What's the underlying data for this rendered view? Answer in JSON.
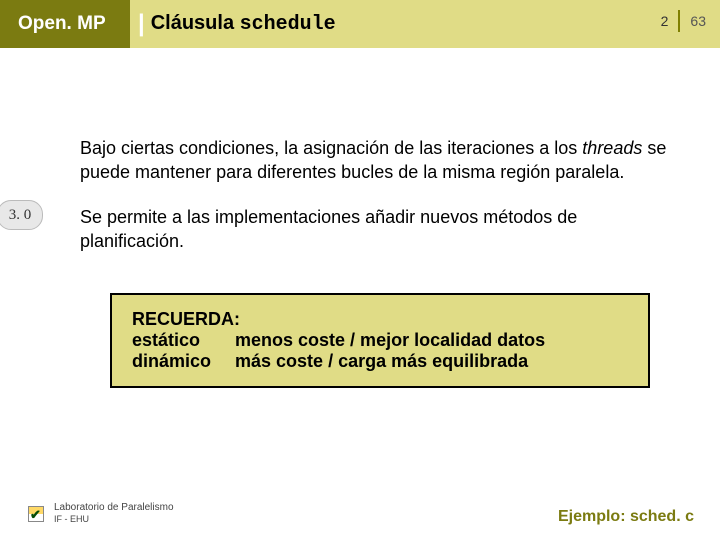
{
  "header": {
    "left": "Open. MP",
    "bar": "|",
    "right_plain": "Cláusula ",
    "right_code": "schedule"
  },
  "pager": {
    "current": "2",
    "total": "63"
  },
  "badge": {
    "version": "3. 0"
  },
  "body": {
    "p1a": "Bajo ciertas condiciones, la asignación de las iteraciones a los ",
    "p1_italic": "threads",
    "p1b": " se puede mantener para diferentes bucles de la misma región paralela.",
    "p2": "Se permite a las implementaciones añadir nuevos métodos de planificación."
  },
  "remember": {
    "title": "RECUERDA:",
    "row1_left": "estático",
    "row1_right": "menos coste / mejor localidad datos",
    "row2_left": "dinámico",
    "row2_right": "más coste / carga más equilibrada"
  },
  "footer": {
    "lab_top": "Laboratorio de Paralelismo",
    "lab_bottom": "IF - EHU",
    "example": "Ejemplo: sched. c"
  },
  "colors": {
    "dark_olive": "#7b7b11",
    "light_olive": "#e0dc86"
  }
}
